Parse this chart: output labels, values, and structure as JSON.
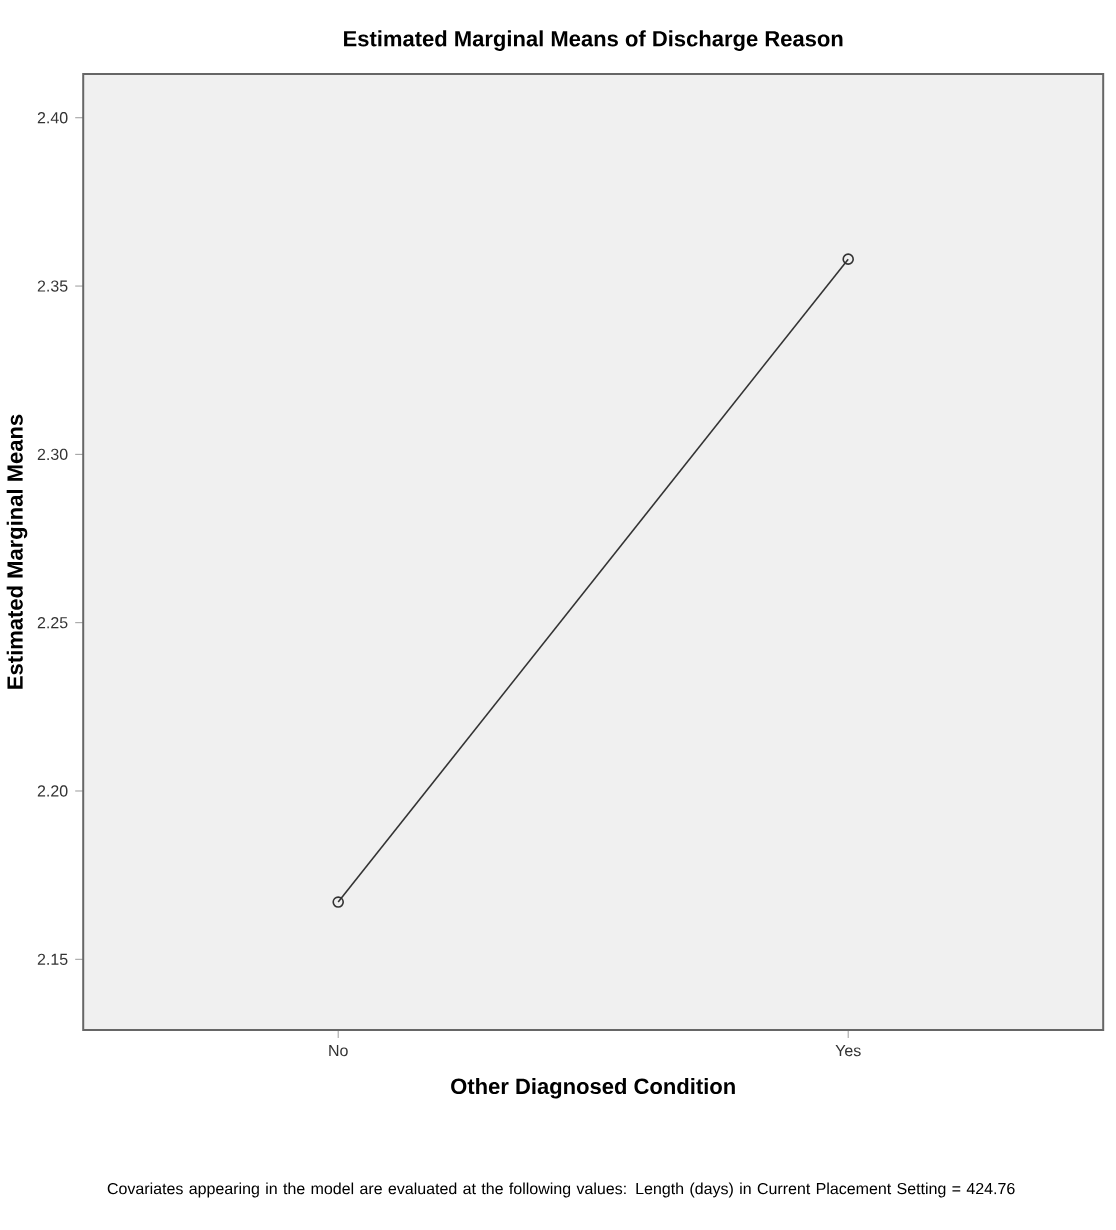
{
  "chart_data": {
    "type": "line",
    "title": "Estimated Marginal Means of Discharge Reason",
    "xlabel": "Other Diagnosed Condition",
    "ylabel": "Estimated Marginal Means",
    "categories": [
      "No",
      "Yes"
    ],
    "series": [
      {
        "color": "#333333",
        "values": [
          2.167,
          2.358
        ]
      }
    ],
    "ylim": [
      2.129,
      2.413
    ],
    "yticks": [
      {
        "value": 2.15,
        "label": "2.15"
      },
      {
        "value": 2.2,
        "label": "2.20"
      },
      {
        "value": 2.25,
        "label": "2.25"
      },
      {
        "value": 2.3,
        "label": "2.30"
      },
      {
        "value": 2.35,
        "label": "2.35"
      },
      {
        "value": 2.4,
        "label": "2.40"
      }
    ],
    "grid": false,
    "marker": "circle",
    "line_style": "solid",
    "annotations": [
      "Covariates appearing in the model are evaluated at the following values: Length (days) in Current Placement Setting = 424.76"
    ]
  }
}
